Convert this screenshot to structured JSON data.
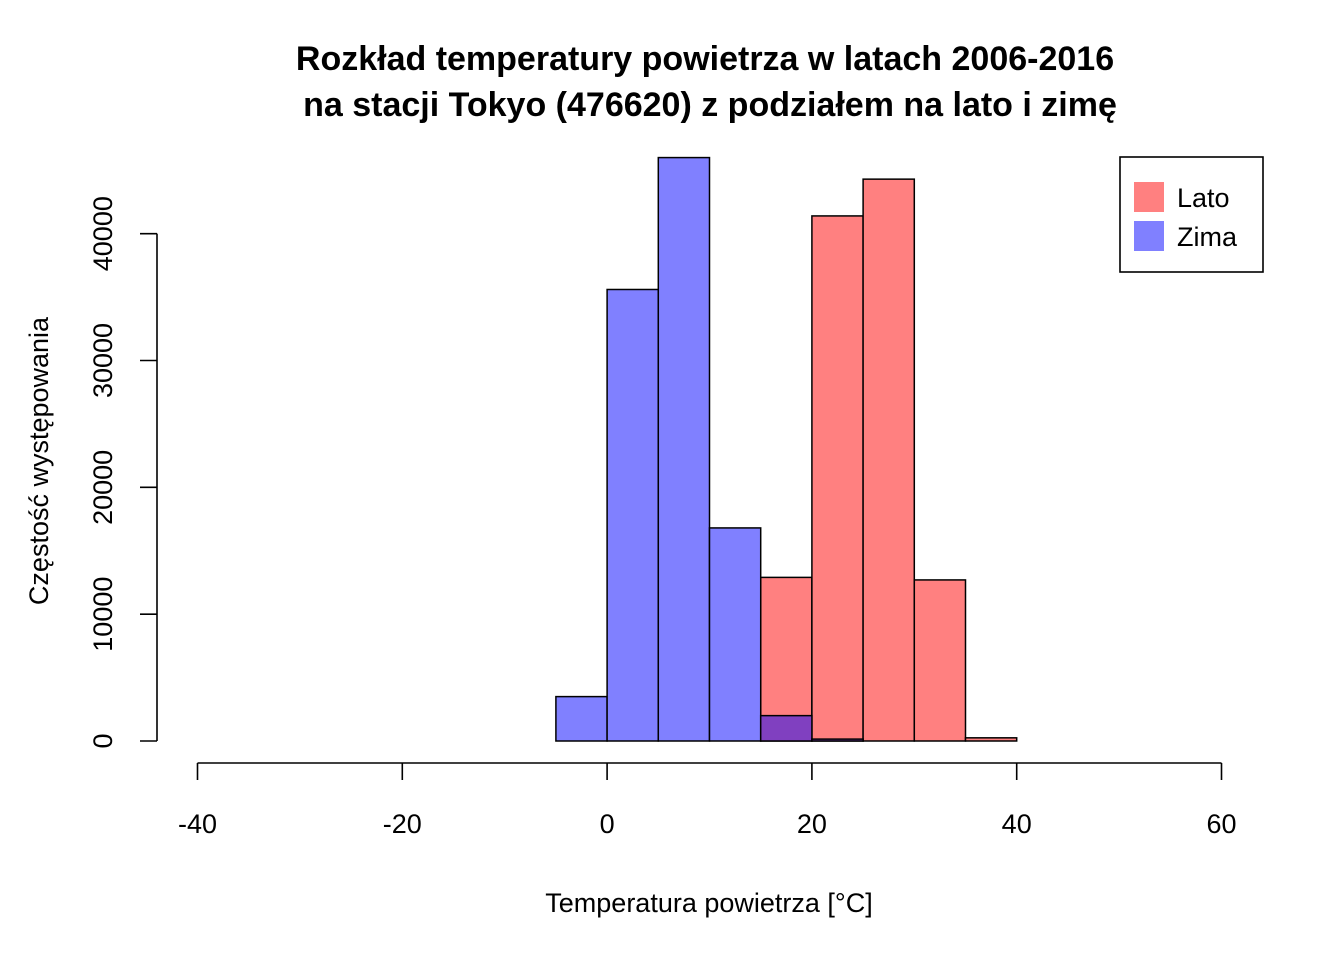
{
  "chart_data": {
    "type": "bar",
    "title": [
      "Rozkład temperatury powietrza w latach 2006-2016",
      "na stacji Tokyo (476620) z podziałem na lato i zimę"
    ],
    "xlabel": "Temperatura powietrza [°C]",
    "ylabel": "Częstość występowania",
    "xlim": [
      -40,
      60
    ],
    "ylim": [
      0,
      46000
    ],
    "x_ticks": [
      -40,
      -20,
      0,
      20,
      40,
      60
    ],
    "y_ticks": [
      0,
      10000,
      20000,
      30000,
      40000
    ],
    "bin_edges": [
      -10,
      -5,
      0,
      5,
      10,
      15,
      20,
      25,
      30,
      35,
      40,
      45,
      50
    ],
    "series": [
      {
        "name": "Lato",
        "color": "#ff8080",
        "values": [
          0,
          0,
          0,
          0,
          0,
          12900,
          41400,
          44300,
          12700,
          250,
          0,
          0
        ]
      },
      {
        "name": "Zima",
        "color": "#8080ff",
        "values": [
          0,
          3500,
          35600,
          46000,
          16800,
          2000,
          150,
          0,
          0,
          0,
          0,
          0
        ]
      }
    ],
    "overlap_color": "#8040c0",
    "legend": {
      "position": "top-right",
      "entries": [
        {
          "label": "Lato",
          "color": "#ff8080"
        },
        {
          "label": "Zima",
          "color": "#8080ff"
        }
      ]
    },
    "grid": false
  }
}
